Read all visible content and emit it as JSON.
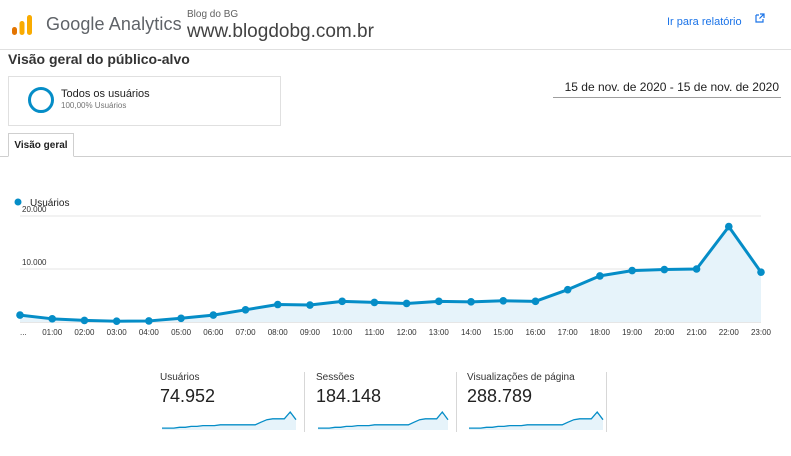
{
  "header": {
    "brand": "Google Analytics",
    "site_name": "Blog do BG",
    "site_url": "www.blogdobg.com.br",
    "report_link": "Ir para relatório",
    "logo_icon": "analytics-logo-icon",
    "external_icon": "external-link-icon",
    "logo_colors": [
      "#f9ab00",
      "#e37400"
    ],
    "link_color": "#1a73e8"
  },
  "page_title": "Visão geral do público-alvo",
  "segment": {
    "name": "Todos os usuários",
    "percent": "100,00% Usuários",
    "color": "#058dc7"
  },
  "date_range": "15 de nov. de 2020 - 15 de nov. de 2020",
  "tabs": [
    {
      "label": "Visão geral",
      "active": true
    }
  ],
  "chart_data": {
    "type": "area",
    "legend": "Usuários",
    "series_color": "#058dc7",
    "fill_color": "#e6f3fa",
    "x": [
      "...",
      "01:00",
      "02:00",
      "03:00",
      "04:00",
      "05:00",
      "06:00",
      "07:00",
      "08:00",
      "09:00",
      "10:00",
      "11:00",
      "12:00",
      "13:00",
      "14:00",
      "15:00",
      "16:00",
      "17:00",
      "18:00",
      "19:00",
      "20:00",
      "21:00",
      "22:00",
      "23:00"
    ],
    "values": [
      1300,
      600,
      300,
      150,
      200,
      700,
      1300,
      2300,
      3300,
      3200,
      3900,
      3700,
      3500,
      3900,
      3800,
      4000,
      3900,
      6100,
      8700,
      9700,
      9900,
      10000,
      18000,
      9400
    ],
    "y_ticks": [
      "20.000",
      "10.000"
    ],
    "y_tick_values": [
      20000,
      10000
    ],
    "ylim": [
      0,
      20000
    ],
    "grid": true
  },
  "metrics": [
    {
      "label": "Usuários",
      "value": "74.952",
      "spark": [
        1,
        1,
        1,
        2,
        2,
        3,
        3,
        4,
        4,
        4,
        5,
        5,
        5,
        5,
        5,
        5,
        5,
        8,
        11,
        12,
        12,
        12,
        20,
        11
      ]
    },
    {
      "label": "Sessões",
      "value": "184.148",
      "spark": [
        1,
        1,
        1,
        2,
        2,
        3,
        3,
        4,
        4,
        4,
        5,
        5,
        5,
        5,
        5,
        5,
        5,
        8,
        11,
        12,
        12,
        12,
        20,
        11
      ]
    },
    {
      "label": "Visualizações de página",
      "value": "288.789",
      "spark": [
        1,
        1,
        1,
        2,
        2,
        3,
        3,
        4,
        4,
        4,
        5,
        5,
        5,
        5,
        5,
        5,
        5,
        8,
        11,
        12,
        12,
        12,
        20,
        11
      ]
    }
  ]
}
